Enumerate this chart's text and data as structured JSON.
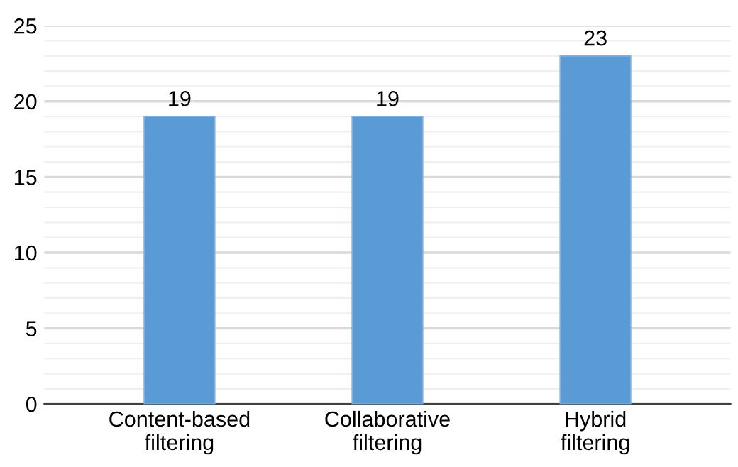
{
  "chart_data": {
    "type": "bar",
    "categories": [
      "Content-based\nfiltering",
      "Collaborative\nfiltering",
      "Hybrid\nfiltering"
    ],
    "values": [
      19,
      19,
      23
    ],
    "color": "#5b9bd5",
    "ylim": [
      0,
      25
    ],
    "yticks": [
      0,
      5,
      10,
      15,
      20,
      25
    ],
    "grid": "y",
    "data_labels": true
  }
}
